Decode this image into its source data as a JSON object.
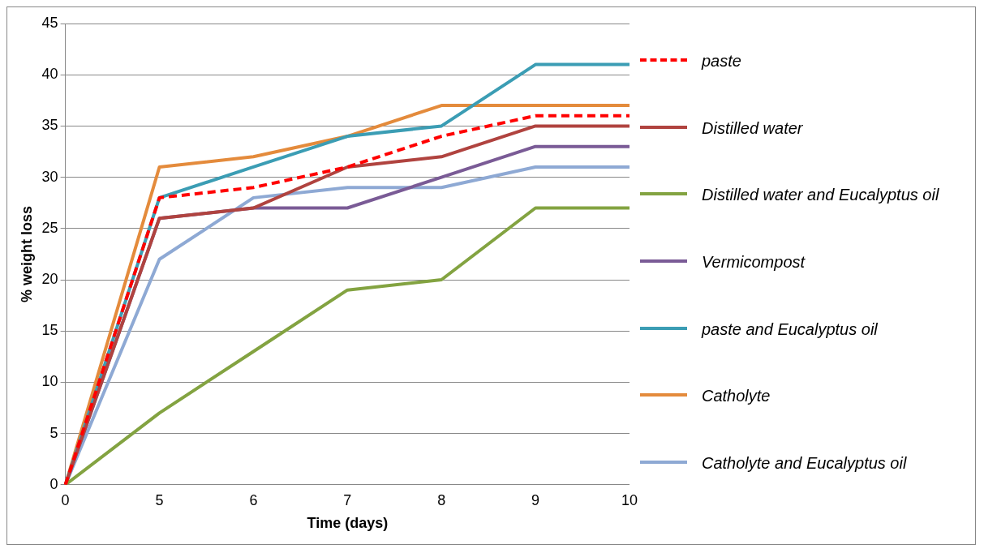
{
  "chart_data": {
    "type": "line",
    "xlabel": "Time (days)",
    "ylabel": "% weight loss",
    "categories": [
      "0",
      "5",
      "6",
      "7",
      "8",
      "9",
      "10"
    ],
    "series": [
      {
        "name": "paste",
        "color": "#ff0000",
        "line_style": "dashed",
        "values": [
          0,
          28,
          29,
          31,
          34,
          36,
          36
        ]
      },
      {
        "name": "Distilled water",
        "color": "#b0433f",
        "values": [
          0,
          26,
          27,
          31,
          32,
          35,
          35
        ]
      },
      {
        "name": "Distilled water and Eucalyptus oil",
        "color": "#83a341",
        "values": [
          0,
          7,
          13,
          19,
          20,
          27,
          27
        ]
      },
      {
        "name": "Vermicompost",
        "color": "#7a5b96",
        "values": [
          0,
          26,
          27,
          27,
          30,
          33,
          33
        ]
      },
      {
        "name": "paste and Eucalyptus oil",
        "color": "#3b9db4",
        "values": [
          0,
          28,
          31,
          34,
          35,
          41,
          41
        ]
      },
      {
        "name": "Catholyte",
        "color": "#e48b3c",
        "values": [
          0,
          31,
          32,
          34,
          37,
          37,
          37
        ]
      },
      {
        "name": "Catholyte and Eucalyptus oil",
        "color": "#8ea9d4",
        "values": [
          0,
          22,
          28,
          29,
          29,
          31,
          31
        ]
      }
    ],
    "ylim": [
      0,
      45
    ],
    "yticks": [
      0,
      5,
      10,
      15,
      20,
      25,
      30,
      35,
      40,
      45
    ],
    "grid": "y",
    "legend": "right",
    "marker": "none",
    "line_style": "solid"
  }
}
